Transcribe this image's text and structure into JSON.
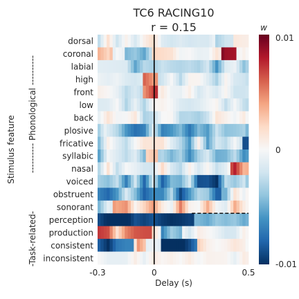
{
  "chart_data": {
    "type": "heatmap",
    "title": "TC6 RACING10",
    "subtitle": "r = 0.15",
    "xlabel": "Delay (s)",
    "ylabel": "Stimulus feature",
    "x_ticks": [
      "-0.3",
      "0",
      "0.5"
    ],
    "xlim": [
      -0.3,
      0.5
    ],
    "vline_x": 0,
    "group_labels": [
      "---------- Phonological ----------",
      "-Task-related-"
    ],
    "features": [
      "dorsal",
      "coronal",
      "labial",
      "high",
      "front",
      "low",
      "back",
      "plosive",
      "fricative",
      "syllabic",
      "nasal",
      "voiced",
      "obstruent",
      "sonorant",
      "perception",
      "production",
      "consistent",
      "inconsistent"
    ],
    "colorbar": {
      "label": "w",
      "min": -0.01,
      "max": 0.01,
      "ticks": [
        "0.01",
        "0",
        "-0.01"
      ]
    },
    "dashed_line": {
      "feature_boundary": "sonorant/perception",
      "x_start": 0.2,
      "x_end": 0.5
    },
    "cmap": [
      "#053061",
      "#2166ac",
      "#4393c3",
      "#92c5de",
      "#d1e5f0",
      "#f7f7f7",
      "#fddbc7",
      "#f4a582",
      "#d6604d",
      "#b2182b",
      "#67001f"
    ]
  }
}
